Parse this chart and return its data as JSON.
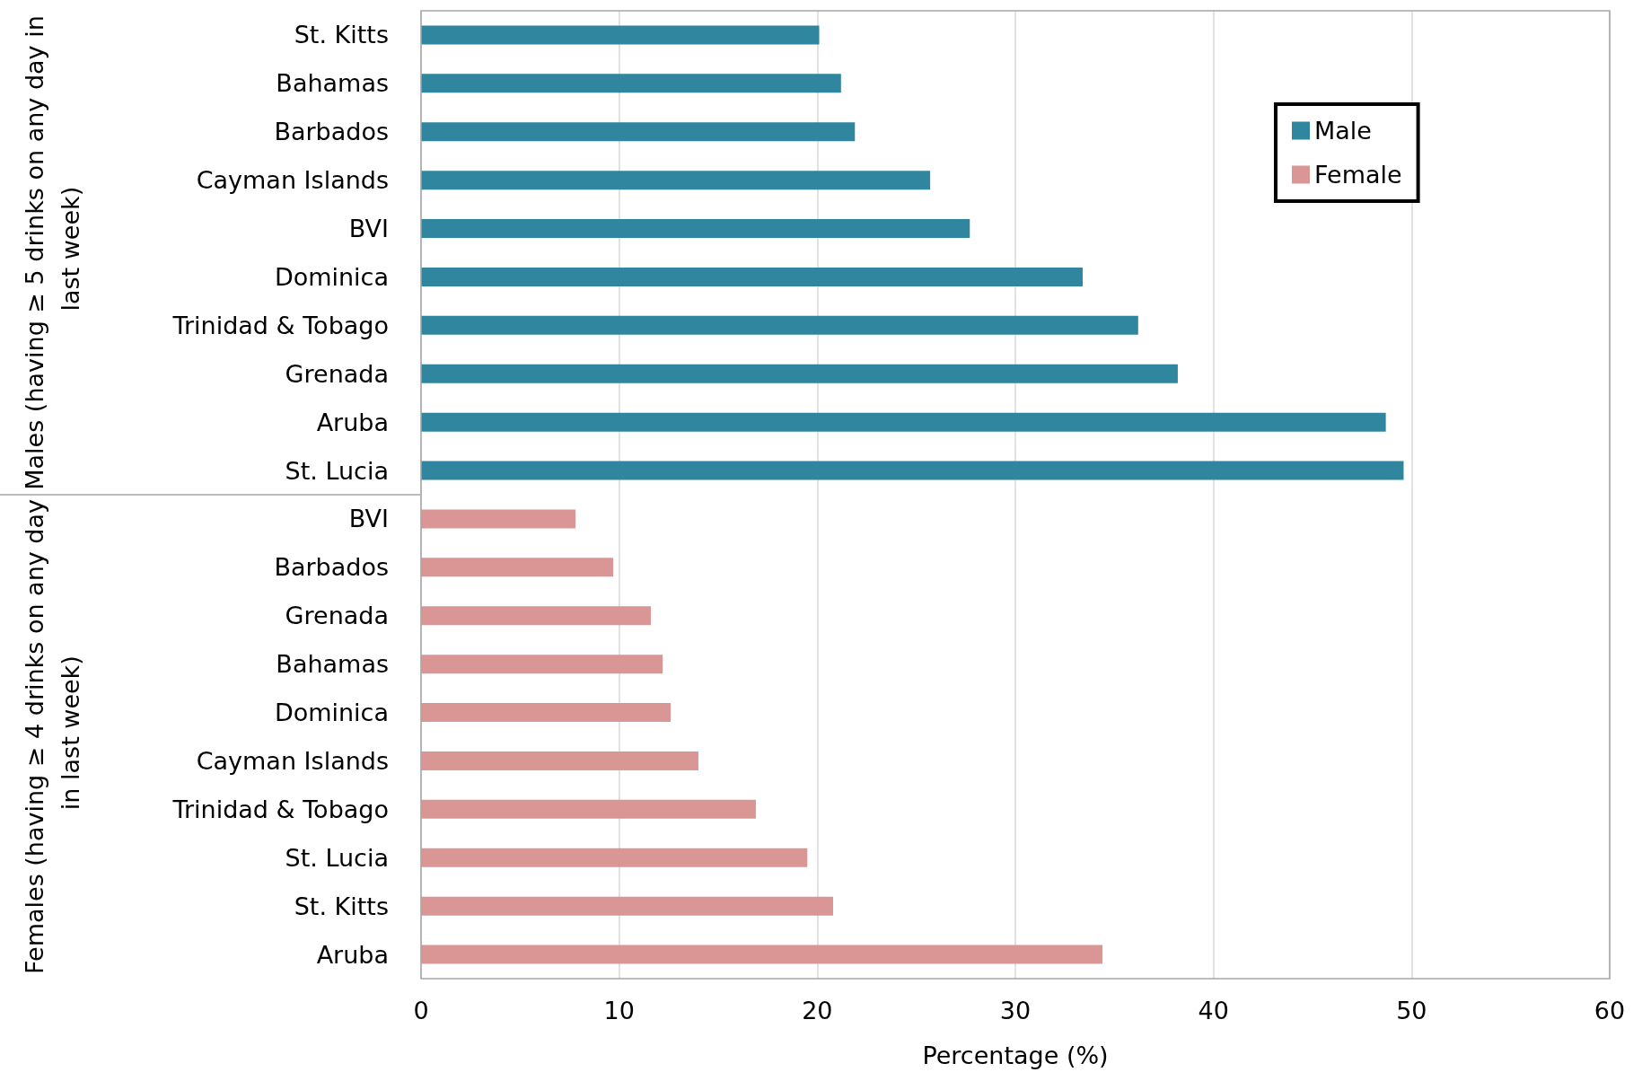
{
  "chart_data": {
    "type": "bar",
    "orientation": "horizontal",
    "xlabel": "Percentage (%)",
    "categories": [
      "St. Kitts",
      "Bahamas",
      "Barbados",
      "Cayman Islands",
      "BVI",
      "Dominica",
      "Trinidad & Tobago",
      "Grenada",
      "Aruba",
      "St. Lucia",
      "BVI",
      "Barbados",
      "Grenada",
      "Bahamas",
      "Dominica",
      "Cayman Islands",
      "Trinidad & Tobago",
      "St. Lucia",
      "St. Kitts",
      "Aruba"
    ],
    "series": [
      {
        "name": "Male",
        "color": "#31869f",
        "values": [
          20.1,
          21.2,
          21.9,
          25.7,
          27.7,
          33.4,
          36.2,
          38.2,
          48.7,
          49.6,
          null,
          null,
          null,
          null,
          null,
          null,
          null,
          null,
          null,
          null
        ]
      },
      {
        "name": "Female",
        "color": "#d99694",
        "values": [
          null,
          null,
          null,
          null,
          null,
          null,
          null,
          null,
          null,
          null,
          7.8,
          9.7,
          11.6,
          12.2,
          12.6,
          14.0,
          16.9,
          19.5,
          20.8,
          34.4
        ]
      }
    ],
    "annotations": [
      "Males (having ≥ 5 drinks on any day in last week)",
      "Females (having ≥ 4 drinks on any day in last week)"
    ],
    "xlim": [
      0,
      60
    ],
    "xticks": [
      0,
      10,
      20,
      30,
      40,
      50,
      60
    ],
    "grid": "x",
    "legend": "top right"
  }
}
